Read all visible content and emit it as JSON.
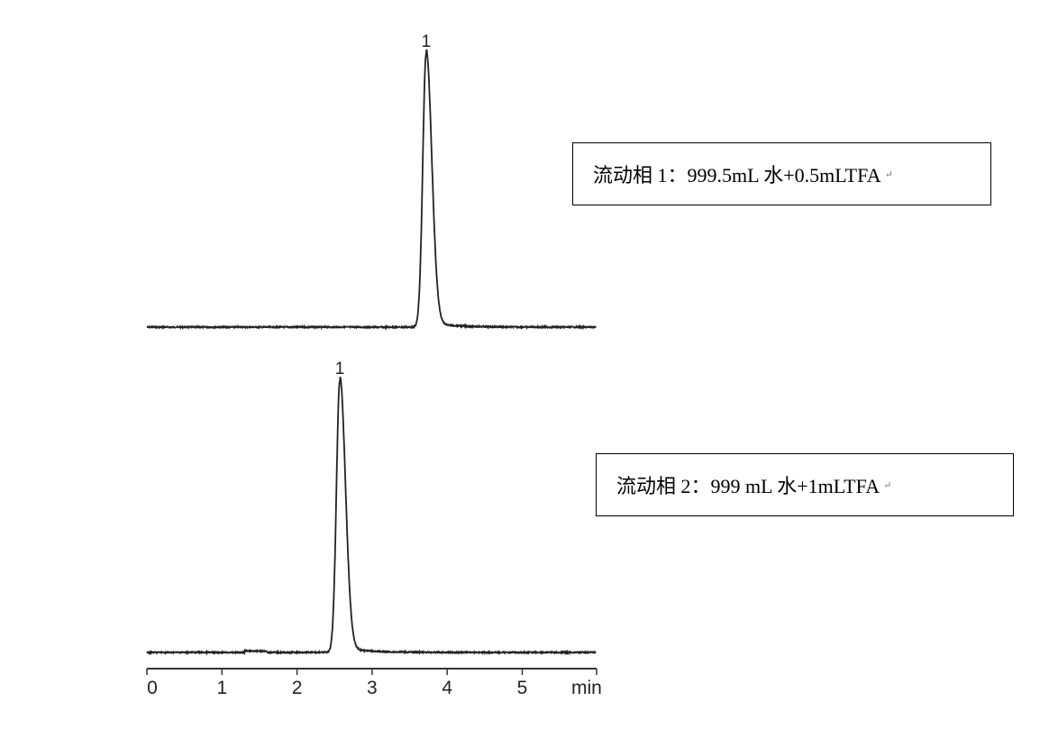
{
  "chart_data": [
    {
      "type": "line",
      "title": "",
      "xlabel": "",
      "ylabel": "",
      "legend": "流动相 1：999.5mL 水+0.5mLTFA",
      "xlim": [
        0,
        6
      ],
      "peaks": [
        {
          "label": "1",
          "retention_time_min": 3.72,
          "relative_height": 1.0
        }
      ],
      "grid": false
    },
    {
      "type": "line",
      "title": "",
      "xlabel": "",
      "ylabel": "",
      "legend": "流动相 2：999 mL 水+1mLTFA",
      "xlim": [
        0,
        6
      ],
      "peaks": [
        {
          "label": "1",
          "retention_time_min": 2.57,
          "relative_height": 1.0
        }
      ],
      "grid": false
    }
  ],
  "x_axis": {
    "ticks": [
      "0",
      "1",
      "2",
      "3",
      "4",
      "5"
    ],
    "tick_values": [
      0,
      1,
      2,
      3,
      4,
      5
    ],
    "unit": "min"
  },
  "colors": {
    "trace": "#222222",
    "axis": "#333333"
  }
}
